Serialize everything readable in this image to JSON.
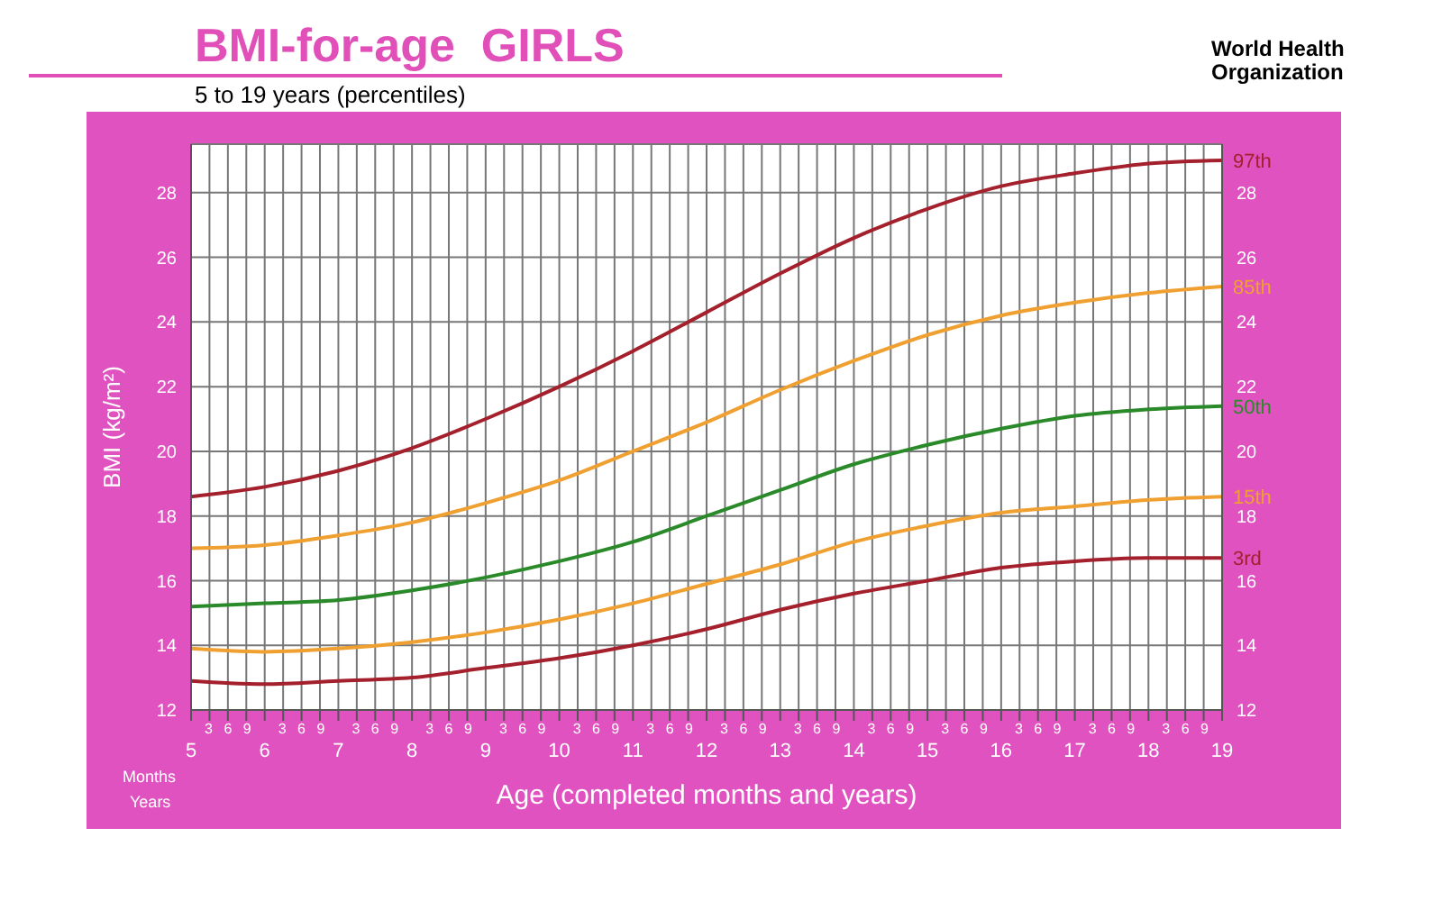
{
  "chart_data": {
    "type": "line",
    "title": "BMI-for-age  GIRLS",
    "subtitle": "5 to 19 years (percentiles)",
    "xlabel": "Age (completed months and years)",
    "ylabel": "BMI (kg/m²)",
    "annotations": [
      "Months",
      "Years",
      "World Health Organization",
      "3 6 9"
    ],
    "x": [
      5,
      6,
      7,
      8,
      9,
      10,
      11,
      12,
      13,
      14,
      15,
      16,
      17,
      18,
      19
    ],
    "series": [
      {
        "name": "97th",
        "color": "#a3202c",
        "values": [
          18.6,
          18.9,
          19.4,
          20.1,
          21.0,
          22.0,
          23.1,
          24.3,
          25.5,
          26.6,
          27.5,
          28.2,
          28.6,
          28.9,
          29.0
        ]
      },
      {
        "name": "85th",
        "color": "#f0a030",
        "values": [
          17.0,
          17.1,
          17.4,
          17.8,
          18.4,
          19.1,
          20.0,
          20.9,
          21.9,
          22.8,
          23.6,
          24.2,
          24.6,
          24.9,
          25.1
        ]
      },
      {
        "name": "50th",
        "color": "#2a8a2a",
        "values": [
          15.2,
          15.3,
          15.4,
          15.7,
          16.1,
          16.6,
          17.2,
          18.0,
          18.8,
          19.6,
          20.2,
          20.7,
          21.1,
          21.3,
          21.4
        ]
      },
      {
        "name": "15th",
        "color": "#f0a030",
        "values": [
          13.9,
          13.8,
          13.9,
          14.1,
          14.4,
          14.8,
          15.3,
          15.9,
          16.5,
          17.2,
          17.7,
          18.1,
          18.3,
          18.5,
          18.6
        ]
      },
      {
        "name": "3rd",
        "color": "#a3202c",
        "values": [
          12.9,
          12.8,
          12.9,
          13.0,
          13.3,
          13.6,
          14.0,
          14.5,
          15.1,
          15.6,
          16.0,
          16.4,
          16.6,
          16.7,
          16.7
        ]
      }
    ],
    "xlim": [
      5,
      19
    ],
    "xticks": [
      5,
      {
        "value": 5.25,
        "label": null
      },
      {
        "value": 5.5,
        "label": null
      },
      {
        "value": 5.75,
        "label": null
      },
      6,
      {
        "value": 6.25,
        "label": null
      },
      {
        "value": 6.5,
        "label": null
      },
      {
        "value": 6.75,
        "label": null
      },
      7,
      {
        "value": 7.25,
        "label": null
      },
      {
        "value": 7.5,
        "label": null
      },
      {
        "value": 7.75,
        "label": null
      },
      8,
      {
        "value": 8.25,
        "label": null
      },
      {
        "value": 8.5,
        "label": null
      },
      {
        "value": 8.75,
        "label": null
      },
      9,
      {
        "value": 9.25,
        "label": null
      },
      {
        "value": 9.5,
        "label": null
      },
      {
        "value": 9.75,
        "label": null
      },
      10,
      {
        "value": 10.25,
        "label": null
      },
      {
        "value": 10.5,
        "label": null
      },
      {
        "value": 10.75,
        "label": null
      },
      11,
      {
        "value": 11.25,
        "label": null
      },
      {
        "value": 11.5,
        "label": null
      },
      {
        "value": 11.75,
        "label": null
      },
      12,
      {
        "value": 12.25,
        "label": null
      },
      {
        "value": 12.5,
        "label": null
      },
      {
        "value": 12.75,
        "label": null
      },
      13,
      {
        "value": 13.25,
        "label": null
      },
      {
        "value": 13.5,
        "label": null
      },
      {
        "value": 13.75,
        "label": null
      },
      14,
      {
        "value": 14.25,
        "label": null
      },
      {
        "value": 14.5,
        "label": null
      },
      {
        "value": 14.75,
        "label": null
      },
      15,
      {
        "value": 15.25,
        "label": null
      },
      {
        "value": 15.5,
        "label": null
      },
      {
        "value": 15.75,
        "label": null
      },
      16,
      {
        "value": 16.25,
        "label": null
      },
      {
        "value": 16.5,
        "label": null
      },
      {
        "value": 16.75,
        "label": null
      },
      17,
      {
        "value": 17.25,
        "label": null
      },
      {
        "value": 17.5,
        "label": null
      },
      {
        "value": 17.75,
        "label": null
      },
      18,
      {
        "value": 18.25,
        "label": null
      },
      {
        "value": 18.5,
        "label": null
      },
      {
        "value": 18.75,
        "label": null
      },
      19
    ],
    "ylim": [
      12,
      29.5
    ],
    "yticks": [
      12,
      14,
      16,
      18,
      20,
      22,
      24,
      26,
      28
    ],
    "y2lim": [
      12,
      29.5
    ],
    "y2ticks": [
      12,
      14,
      16,
      18,
      20,
      22,
      24,
      26,
      28
    ],
    "grid": true,
    "legend": false,
    "marker": "none",
    "line_style": "solid"
  }
}
